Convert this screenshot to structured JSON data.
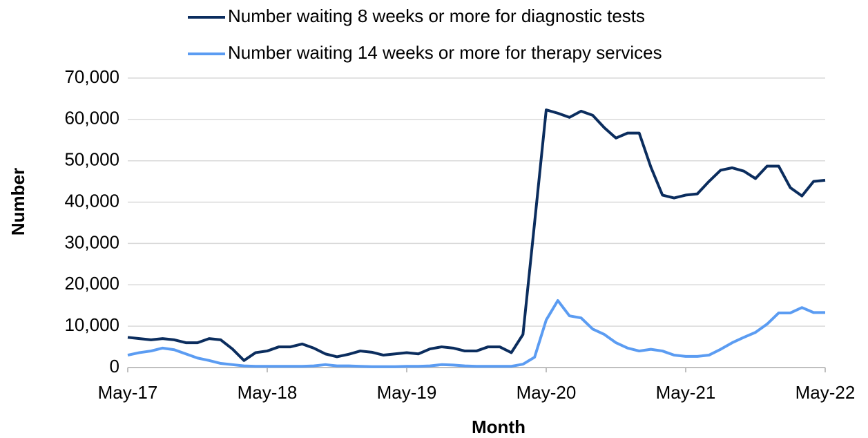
{
  "chart_data": {
    "type": "line",
    "x_label": "Month",
    "y_label": "Number",
    "categories": [
      "May-17",
      null,
      null,
      null,
      null,
      null,
      null,
      null,
      null,
      null,
      null,
      null,
      "May-18",
      null,
      null,
      null,
      null,
      null,
      null,
      null,
      null,
      null,
      null,
      null,
      "May-19",
      null,
      null,
      null,
      null,
      null,
      null,
      null,
      null,
      null,
      null,
      null,
      "May-20",
      null,
      null,
      null,
      null,
      null,
      null,
      null,
      null,
      null,
      null,
      null,
      "May-21",
      null,
      null,
      null,
      null,
      null,
      null,
      null,
      null,
      null,
      null,
      null,
      "May-22"
    ],
    "series": [
      {
        "name": "Number waiting 8 weeks or more for diagnostic tests",
        "color": "#0b2d5e",
        "values": [
          7300,
          7000,
          6700,
          7000,
          6700,
          6000,
          6000,
          7000,
          6700,
          4500,
          1700,
          3600,
          4000,
          5000,
          5000,
          5700,
          4700,
          3300,
          2600,
          3200,
          4000,
          3700,
          3000,
          3300,
          3600,
          3300,
          4500,
          5000,
          4700,
          4000,
          4000,
          5000,
          5000,
          3600,
          8000,
          35000,
          62300,
          61500,
          60500,
          62000,
          61000,
          58000,
          55500,
          56700,
          56700,
          48500,
          41700,
          41000,
          41700,
          42000,
          45000,
          47700,
          48300,
          47500,
          45700,
          48700,
          48700,
          43500,
          41500,
          45000,
          45300
        ]
      },
      {
        "name": "Number waiting 14 weeks or more for therapy services",
        "color": "#5b9cf2",
        "values": [
          3000,
          3600,
          4000,
          4700,
          4300,
          3300,
          2300,
          1700,
          1000,
          700,
          400,
          300,
          300,
          300,
          300,
          300,
          400,
          700,
          400,
          400,
          300,
          200,
          200,
          200,
          300,
          300,
          400,
          700,
          600,
          400,
          300,
          300,
          300,
          300,
          800,
          2500,
          11500,
          16200,
          12500,
          12000,
          9300,
          8000,
          6000,
          4700,
          4000,
          4400,
          4000,
          3000,
          2700,
          2700,
          3000,
          4400,
          6000,
          7300,
          8500,
          10500,
          13200,
          13200,
          14500,
          13300,
          13300
        ]
      }
    ],
    "ylim": [
      0,
      70000
    ],
    "yticks": [
      0,
      {
        "value": 10000,
        "label": "10,000"
      },
      {
        "value": 20000,
        "label": "20,000"
      },
      {
        "value": 30000,
        "label": "30,000"
      },
      {
        "value": 40000,
        "label": "40,000"
      },
      {
        "value": 50000,
        "label": "50,000"
      },
      {
        "value": 60000,
        "label": "60,000"
      },
      {
        "value": 70000,
        "label": "70,000"
      }
    ],
    "grid": true,
    "legend": "top"
  }
}
